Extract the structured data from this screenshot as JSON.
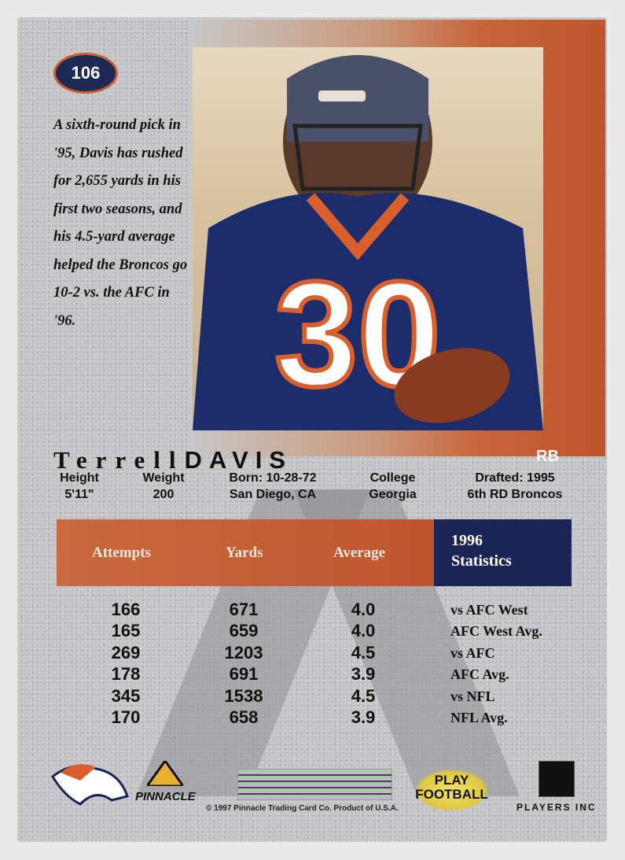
{
  "card_number": "106",
  "blurb": "A sixth-round pick in '95, Davis has rushed for 2,655 yards in his first two seasons, and his 4.5-yard average helped the Broncos go 10-2 vs. the AFC in '96.",
  "player": {
    "first_name": "Terrell",
    "last_name": "DAVIS",
    "position": "RB",
    "jersey_number": "30"
  },
  "bio": [
    {
      "label": "Height",
      "value": "5'11\""
    },
    {
      "label": "Weight",
      "value": "200"
    },
    {
      "label": "Born: 10-28-72",
      "value": "San Diego, CA"
    },
    {
      "label": "College",
      "value": "Georgia"
    },
    {
      "label": "Drafted: 1995",
      "value": "6th RD Broncos"
    }
  ],
  "stats": {
    "headers": [
      "Attempts",
      "Yards",
      "Average"
    ],
    "title_year": "1996",
    "title": "Statistics",
    "rows": [
      {
        "attempts": "166",
        "yards": "671",
        "average": "4.0",
        "label": "vs AFC West"
      },
      {
        "attempts": "165",
        "yards": "659",
        "average": "4.0",
        "label": "AFC West Avg."
      },
      {
        "attempts": "269",
        "yards": "1203",
        "average": "4.5",
        "label": "vs AFC"
      },
      {
        "attempts": "178",
        "yards": "691",
        "average": "3.9",
        "label": "AFC Avg."
      },
      {
        "attempts": "345",
        "yards": "1538",
        "average": "4.5",
        "label": "vs NFL"
      },
      {
        "attempts": "170",
        "yards": "658",
        "average": "3.9",
        "label": "NFL Avg."
      }
    ]
  },
  "footer": {
    "pinnacle": "PINNACLE",
    "copyright": "© 1997 Pinnacle Trading Card Co. Product of U.S.A.",
    "play_football": "PLAY FOOTBALL",
    "players_inc": "PLAYERS INC"
  },
  "colors": {
    "orange": "#c0552c",
    "navy": "#1b2456",
    "silver": "#c4c4c6"
  }
}
